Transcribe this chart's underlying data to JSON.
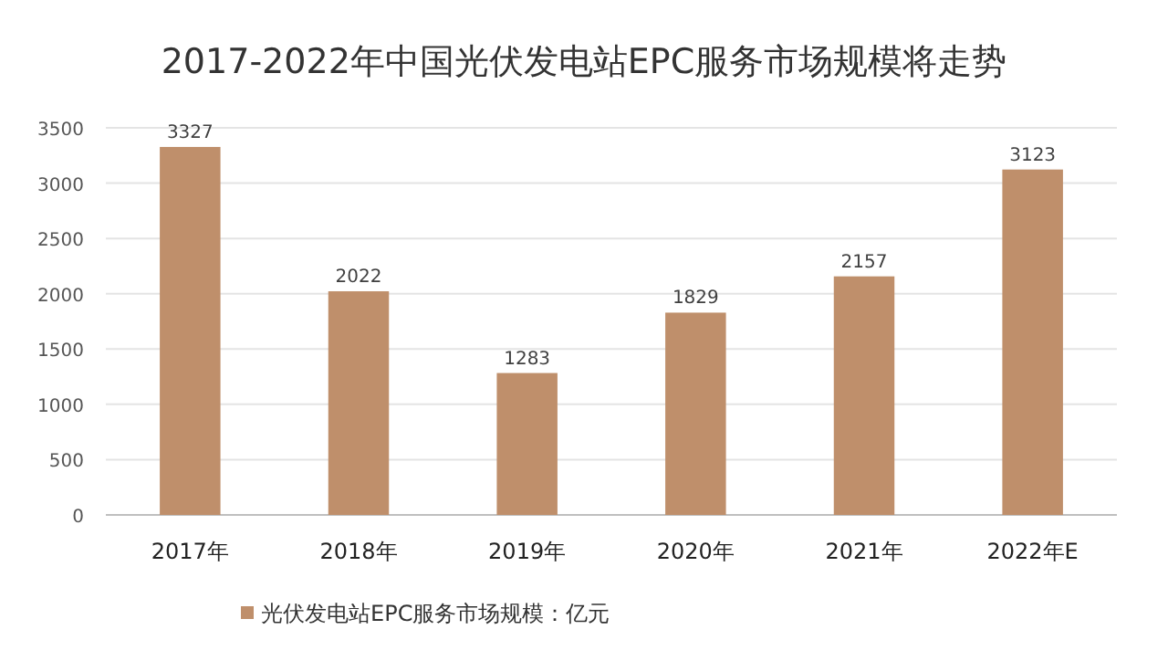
{
  "chart_data": {
    "type": "bar",
    "title": "2017-2022年中国光伏发电站EPC服务市场规模将走势",
    "categories": [
      "2017年",
      "2018年",
      "2019年",
      "2020年",
      "2021年",
      "2022年E"
    ],
    "series": [
      {
        "name": "光伏发电站EPC服务市场规模：亿元",
        "color": "#bf8f6b",
        "values": [
          3327,
          2022,
          1283,
          1829,
          2157,
          3123
        ]
      }
    ],
    "ylim": [
      0,
      3500
    ],
    "yticks": [
      0,
      500,
      1000,
      1500,
      2000,
      2500,
      3000,
      3500
    ],
    "grid": "y",
    "legend": "bottom",
    "data_labels": true
  }
}
